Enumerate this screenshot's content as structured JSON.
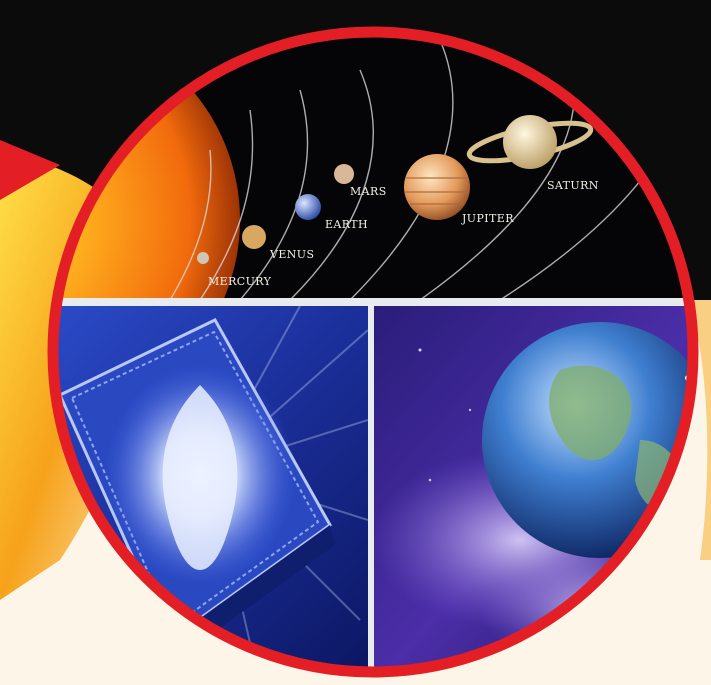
{
  "colors": {
    "ring": "#e31e25",
    "top_background": "#0b0b0c",
    "warm_swoosh": "#f6a21a",
    "panel_divider": "#e9ecef"
  },
  "solar_system": {
    "planets": [
      {
        "name": "MERCURY",
        "color": "#cfc6b3"
      },
      {
        "name": "VENUS",
        "color": "#d9a860"
      },
      {
        "name": "EARTH",
        "color": "#4a6cc2"
      },
      {
        "name": "MARS",
        "color": "#d8b897"
      },
      {
        "name": "JUPITER",
        "color": "#e8a15f"
      },
      {
        "name": "SATURN",
        "color": "#ecd9a6"
      }
    ]
  },
  "panels": {
    "left_icon": "glowing-book-icon",
    "right_icon": "earth-in-space-icon"
  }
}
